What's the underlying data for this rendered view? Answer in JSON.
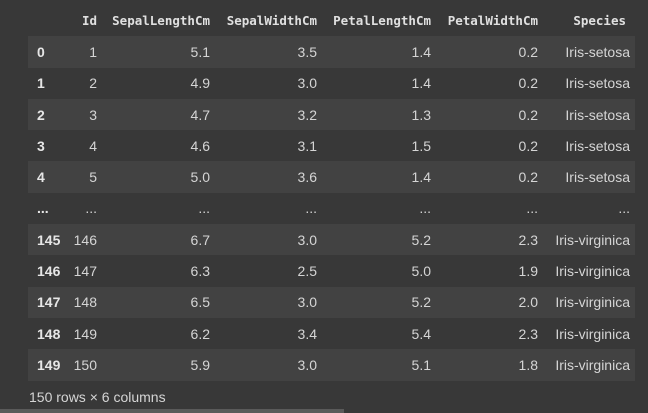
{
  "table": {
    "columns": [
      "",
      "Id",
      "SepalLengthCm",
      "SepalWidthCm",
      "PetalLengthCm",
      "PetalWidthCm",
      "Species"
    ],
    "rows": [
      [
        "0",
        "1",
        "5.1",
        "3.5",
        "1.4",
        "0.2",
        "Iris-setosa"
      ],
      [
        "1",
        "2",
        "4.9",
        "3.0",
        "1.4",
        "0.2",
        "Iris-setosa"
      ],
      [
        "2",
        "3",
        "4.7",
        "3.2",
        "1.3",
        "0.2",
        "Iris-setosa"
      ],
      [
        "3",
        "4",
        "4.6",
        "3.1",
        "1.5",
        "0.2",
        "Iris-setosa"
      ],
      [
        "4",
        "5",
        "5.0",
        "3.6",
        "1.4",
        "0.2",
        "Iris-setosa"
      ],
      [
        "...",
        "...",
        "...",
        "...",
        "...",
        "...",
        "..."
      ],
      [
        "145",
        "146",
        "6.7",
        "3.0",
        "5.2",
        "2.3",
        "Iris-virginica"
      ],
      [
        "146",
        "147",
        "6.3",
        "2.5",
        "5.0",
        "1.9",
        "Iris-virginica"
      ],
      [
        "147",
        "148",
        "6.5",
        "3.0",
        "5.2",
        "2.0",
        "Iris-virginica"
      ],
      [
        "148",
        "149",
        "6.2",
        "3.4",
        "5.4",
        "2.3",
        "Iris-virginica"
      ],
      [
        "149",
        "150",
        "5.9",
        "3.0",
        "5.1",
        "1.8",
        "Iris-virginica"
      ]
    ]
  },
  "shape_text": "150 rows × 6 columns"
}
